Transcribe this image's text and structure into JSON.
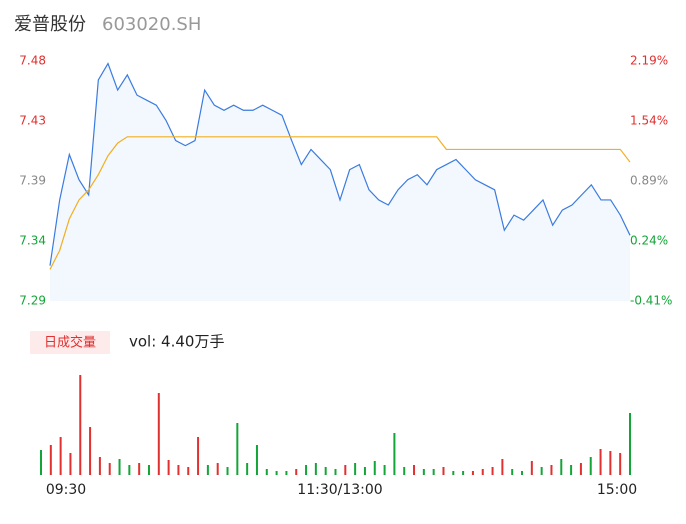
{
  "chart_data": {
    "type": "intraday",
    "title": "爱普股份",
    "subtitle": "603020.SH",
    "ylim": [
      7.29,
      7.48
    ],
    "yticks": [
      {
        "value": 7.48,
        "label": "7.48"
      },
      {
        "value": 7.4325,
        "label": "7.43"
      },
      {
        "value": 7.385,
        "label": "7.39"
      },
      {
        "value": 7.3375,
        "label": "7.34"
      },
      {
        "value": 7.29,
        "label": "7.29"
      }
    ],
    "y2lim": [
      -0.41,
      2.19
    ],
    "y2ticks": [
      {
        "value": 2.19,
        "label": "2.19%"
      },
      {
        "value": 1.54,
        "label": "1.54%"
      },
      {
        "value": 0.89,
        "label": "0.89%"
      },
      {
        "value": 0.24,
        "label": "0.24%"
      },
      {
        "value": -0.41,
        "label": "-0.41%"
      }
    ],
    "tick_colors": [
      "#e03030",
      "#e03030",
      "#888888",
      "#13a538",
      "#13a538"
    ],
    "x_labels": [
      "09:30",
      "11:30/13:00",
      "15:00"
    ],
    "series": [
      {
        "name": "price",
        "color": "#3a7be0",
        "values": [
          7.318,
          7.37,
          7.406,
          7.386,
          7.374,
          7.465,
          7.478,
          7.457,
          7.469,
          7.453,
          7.449,
          7.445,
          7.433,
          7.417,
          7.413,
          7.417,
          7.457,
          7.445,
          7.441,
          7.445,
          7.441,
          7.441,
          7.445,
          7.441,
          7.437,
          7.417,
          7.398,
          7.41,
          7.402,
          7.394,
          7.37,
          7.394,
          7.398,
          7.378,
          7.37,
          7.366,
          7.378,
          7.386,
          7.39,
          7.382,
          7.394,
          7.398,
          7.402,
          7.394,
          7.386,
          7.382,
          7.378,
          7.346,
          7.358,
          7.354,
          7.362,
          7.37,
          7.35,
          7.362,
          7.366,
          7.374,
          7.382,
          7.37,
          7.37,
          7.358,
          7.342
        ]
      },
      {
        "name": "average",
        "color": "#f0b020",
        "values": [
          7.315,
          7.33,
          7.355,
          7.37,
          7.378,
          7.39,
          7.405,
          7.415,
          7.42,
          7.42,
          7.42,
          7.42,
          7.42,
          7.42,
          7.42,
          7.42,
          7.42,
          7.42,
          7.42,
          7.42,
          7.42,
          7.42,
          7.42,
          7.42,
          7.42,
          7.42,
          7.42,
          7.42,
          7.42,
          7.42,
          7.42,
          7.42,
          7.42,
          7.42,
          7.42,
          7.42,
          7.42,
          7.42,
          7.42,
          7.42,
          7.42,
          7.41,
          7.41,
          7.41,
          7.41,
          7.41,
          7.41,
          7.41,
          7.41,
          7.41,
          7.41,
          7.41,
          7.41,
          7.41,
          7.41,
          7.41,
          7.41,
          7.41,
          7.41,
          7.41,
          7.4
        ]
      }
    ],
    "volume": {
      "legend": "日成交量",
      "label": "vol: 4.40万手",
      "ylim": [
        0,
        100
      ],
      "values": [
        25,
        30,
        38,
        22,
        100,
        48,
        18,
        12,
        16,
        10,
        12,
        10,
        82,
        15,
        10,
        8,
        38,
        10,
        12,
        8,
        52,
        12,
        30,
        6,
        4,
        4,
        6,
        10,
        12,
        8,
        6,
        10,
        12,
        8,
        14,
        10,
        42,
        8,
        10,
        6,
        6,
        8,
        4,
        4,
        4,
        6,
        8,
        16,
        6,
        4,
        14,
        8,
        10,
        16,
        10,
        12,
        18,
        26,
        24,
        22,
        62
      ],
      "colors": [
        "#13a538",
        "#e03030",
        "#e03030",
        "#e03030",
        "#e03030",
        "#e03030",
        "#e03030",
        "#e03030",
        "#13a538",
        "#13a538",
        "#e03030",
        "#13a538",
        "#e03030",
        "#e03030",
        "#e03030",
        "#e03030",
        "#e03030",
        "#13a538",
        "#e03030",
        "#13a538",
        "#13a538",
        "#13a538",
        "#13a538",
        "#13a538",
        "#13a538",
        "#13a538",
        "#e03030",
        "#13a538",
        "#13a538",
        "#13a538",
        "#13a538",
        "#e03030",
        "#13a538",
        "#13a538",
        "#13a538",
        "#13a538",
        "#13a538",
        "#13a538",
        "#e03030",
        "#13a538",
        "#13a538",
        "#e03030",
        "#13a538",
        "#13a538",
        "#e03030",
        "#e03030",
        "#e03030",
        "#e03030",
        "#13a538",
        "#13a538",
        "#e03030",
        "#13a538",
        "#e03030",
        "#13a538",
        "#13a538",
        "#e03030",
        "#13a538",
        "#e03030",
        "#e03030",
        "#e03030",
        "#13a538"
      ]
    }
  }
}
